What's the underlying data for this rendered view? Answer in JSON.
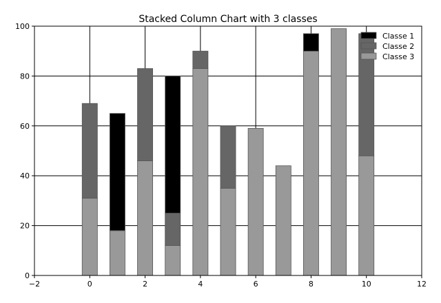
{
  "chart_data": {
    "type": "bar",
    "stacked": true,
    "title": "Stacked Column Chart with 3 classes",
    "xlabel": "",
    "ylabel": "",
    "xlim": [
      -2,
      12
    ],
    "ylim": [
      0,
      100
    ],
    "xticks": [
      -2,
      0,
      2,
      4,
      6,
      8,
      10,
      12
    ],
    "yticks": [
      0,
      20,
      40,
      60,
      80,
      100
    ],
    "grid": true,
    "legend_position": "top-right",
    "x": [
      0,
      1,
      2,
      3,
      4,
      5,
      6,
      7,
      8,
      9,
      10
    ],
    "series": [
      {
        "name": "Classe 3",
        "color": "#999999",
        "values": [
          31,
          18,
          46,
          12,
          83,
          35,
          59,
          44,
          90,
          99,
          48
        ]
      },
      {
        "name": "Classe 2",
        "color": "#666666",
        "values": [
          38,
          0,
          37,
          13,
          7,
          25,
          0,
          0,
          0,
          0,
          49
        ]
      },
      {
        "name": "Classe 1",
        "color": "#000000",
        "values": [
          0,
          47,
          0,
          55,
          0,
          0,
          0,
          0,
          7,
          0,
          0
        ]
      }
    ],
    "legend": [
      {
        "label": "Classe 1",
        "color": "#000000"
      },
      {
        "label": "Classe 2",
        "color": "#666666"
      },
      {
        "label": "Classe 3",
        "color": "#999999"
      }
    ]
  }
}
